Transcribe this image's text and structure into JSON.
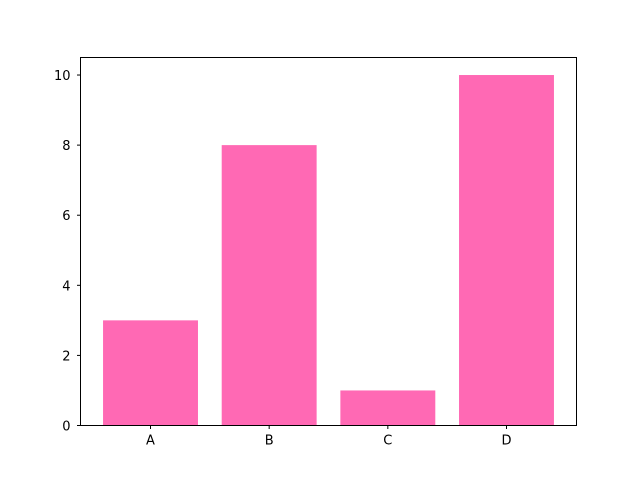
{
  "chart_data": {
    "type": "bar",
    "categories": [
      "A",
      "B",
      "C",
      "D"
    ],
    "values": [
      3,
      8,
      1,
      10
    ],
    "title": "",
    "xlabel": "",
    "ylabel": "",
    "ylim": [
      0,
      10.5
    ],
    "yticks": [
      "0",
      "2",
      "4",
      "6",
      "8",
      "10"
    ],
    "bar_color": "#FF69B4",
    "grid": false
  }
}
